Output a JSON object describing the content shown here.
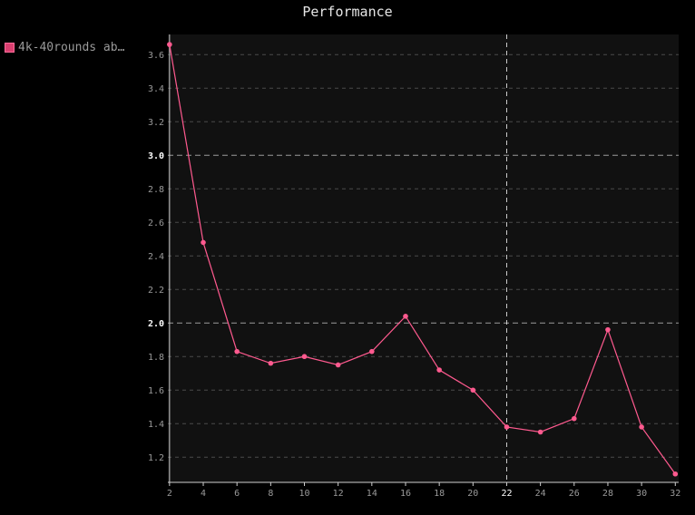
{
  "title": "Performance",
  "colors": {
    "background": "#000000",
    "plot_background": "#111111",
    "series": "#ff5a8f",
    "swatch_fill": "#d83f6f",
    "grid": "#4a4a4a",
    "axis": "#cfcfcf",
    "tick_text": "#9a9a9a"
  },
  "legend": {
    "label": "4k-40rounds ab…",
    "placement": "top-left"
  },
  "chart_data": {
    "type": "line",
    "title": "Performance",
    "xlabel": "",
    "ylabel": "",
    "xlim": [
      1.9,
      32.2
    ],
    "ylim": [
      1.05,
      3.72
    ],
    "x_ticks": [
      "2",
      "4",
      "6",
      "8",
      "10",
      "12",
      "14",
      "16",
      "18",
      "20",
      "22",
      "24",
      "26",
      "28",
      "30",
      "32"
    ],
    "y_ticks": [
      "1.2",
      "1.4",
      "1.6",
      "1.8",
      "2.0",
      "2.2",
      "2.4",
      "2.6",
      "2.8",
      "3.0",
      "3.2",
      "3.4",
      "3.6"
    ],
    "bold_y_ticks": [
      "2.0",
      "3.0"
    ],
    "highlight_x": 22,
    "grid": true,
    "series": [
      {
        "name": "4k-40rounds ab…",
        "x": [
          2,
          4,
          6,
          8,
          10,
          12,
          14,
          16,
          18,
          20,
          22,
          24,
          26,
          28,
          30,
          32
        ],
        "y": [
          3.66,
          2.48,
          1.83,
          1.76,
          1.8,
          1.75,
          1.83,
          2.04,
          1.72,
          1.6,
          1.38,
          1.35,
          1.43,
          1.96,
          1.38,
          1.1
        ]
      }
    ]
  }
}
